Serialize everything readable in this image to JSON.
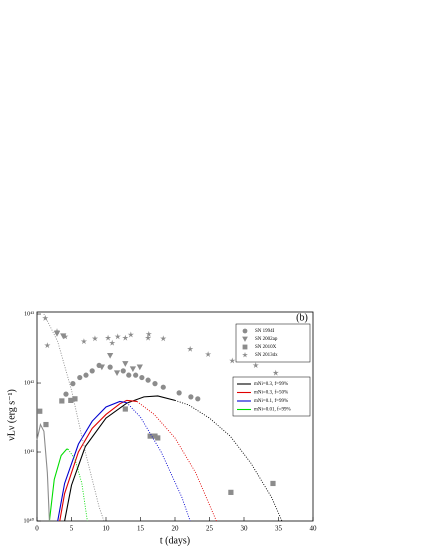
{
  "chart_data": {
    "type": "scatter",
    "panel_label": "(b)",
    "xlabel": "t (days)",
    "ylabel": "νLν (erg s⁻¹)",
    "xlim": [
      0,
      40
    ],
    "xticks": [
      0,
      5,
      10,
      15,
      20,
      25,
      30,
      35,
      40
    ],
    "ylim": [
      1e+40,
      1.07e+43
    ],
    "ylog": true,
    "yticks": [
      {
        "value": 1e+40,
        "label": "10⁴⁰"
      },
      {
        "value": 1e+41,
        "label": "10⁴¹"
      },
      {
        "value": 1e+42,
        "label": "10⁴²"
      },
      {
        "value": 1e+43,
        "label": "10⁴³"
      }
    ],
    "series": [
      {
        "name": "SN 1994I",
        "color": "#8c8c8c",
        "marker": "circle",
        "x": [
          4.2,
          5.2,
          6.2,
          7.1,
          8,
          9,
          10.6,
          12.5,
          13.3,
          14.3,
          15.2,
          16.1,
          17.1,
          18.3,
          20.6,
          22.3,
          23.3
        ],
        "values": [
          6.9e+41,
          9.8e+41,
          1.2e+42,
          1.3e+42,
          1.5e+42,
          1.8e+42,
          1.7e+42,
          1.5e+42,
          1.3e+42,
          1.3e+42,
          1.2e+42,
          1.1e+42,
          9.8e+41,
          8.7e+41,
          7.2e+41,
          6.3e+41,
          5.9e+41
        ]
      },
      {
        "name": "SN 2002ap",
        "color": "#8c8c8c",
        "marker": "triangle",
        "x": [
          2.9,
          3.8,
          9.4,
          10.6,
          11.6,
          12.8,
          13.9,
          14.9
        ],
        "values": [
          5.2e+42,
          4.8e+42,
          1.7e+42,
          2.5e+42,
          1.4e+42,
          1.9e+42,
          1.6e+42,
          1.7e+42
        ]
      },
      {
        "name": "SN 2010X",
        "color": "#8c8c8c",
        "marker": "square",
        "x": [
          0.4,
          1.3,
          3.6,
          4.9,
          5.5,
          12.8,
          16.4,
          17.1,
          17.5,
          28.1,
          34.2
        ],
        "values": [
          3.9e+41,
          2.5e+41,
          5.5e+41,
          5.6e+41,
          5.9e+41,
          4.2e+41,
          1.7e+41,
          1.7e+41,
          1.6e+41,
          2.6e+40,
          3.5e+40
        ]
      },
      {
        "name": "SN 2013dx",
        "color": "#8c8c8c",
        "marker": "star",
        "x": [
          1.2,
          1.5,
          2.9,
          4.1,
          6.8,
          8.4,
          10.3,
          10.9,
          11.7,
          12.8,
          13.6,
          16.1,
          16.2,
          18.3,
          22.2,
          24.8,
          28.3,
          31.7,
          34.6
        ],
        "values": [
          8.7e+42,
          3.5e+42,
          5.6e+42,
          4.7e+42,
          4e+42,
          4.4e+42,
          4.5e+42,
          3.8e+42,
          4.7e+42,
          4.5e+42,
          5e+42,
          4.5e+42,
          5.1e+42,
          4.4e+42,
          3.1e+42,
          2.6e+42,
          2.1e+42,
          1.8e+42,
          1.4e+42
        ]
      }
    ],
    "models": [
      {
        "name": "mNi=0.3, f=99%",
        "color": "#000000",
        "x": [
          4,
          5,
          7,
          10,
          13,
          15.5,
          17.5,
          20
        ],
        "values": [
          1e+40,
          3.3e+40,
          1.2e+41,
          3.1e+41,
          5.1e+41,
          6.3e+41,
          6.5e+41,
          5.6e+41
        ],
        "tail_x": [
          20,
          22,
          25,
          28,
          31,
          34,
          35.5
        ],
        "tail_values": [
          5.6e+41,
          4.8e+41,
          3.1e+41,
          1.7e+41,
          6.9e+40,
          2.2e+40,
          1e+40
        ]
      },
      {
        "name": "mNi=0.3, f=50%",
        "color": "#e00000",
        "x": [
          3.3,
          4,
          6,
          8,
          10,
          12,
          13,
          14.5
        ],
        "values": [
          1e+40,
          2.5e+40,
          1e+41,
          2.2e+41,
          3.5e+41,
          5e+41,
          5.6e+41,
          5.4e+41
        ],
        "tail_x": [
          14.5,
          17,
          20,
          23,
          26
        ],
        "tail_values": [
          5.4e+41,
          3.5e+41,
          1.6e+41,
          5e+40,
          1e+40
        ]
      },
      {
        "name": "mNi=0.1, f=99%",
        "color": "#0000d0",
        "x": [
          3,
          4,
          6,
          8,
          10,
          12,
          13
        ],
        "values": [
          1e+40,
          3.5e+40,
          1.3e+41,
          2.8e+41,
          4.5e+41,
          5.4e+41,
          5.2e+41
        ],
        "tail_x": [
          13,
          15,
          18,
          21,
          22.2
        ],
        "tail_values": [
          5.2e+41,
          3.2e+41,
          1e+41,
          2.2e+40,
          1e+40
        ]
      },
      {
        "name": "mNi=0.01, f=99%",
        "color": "#00dd00",
        "x": [
          1.8,
          2.5,
          3.5,
          4.3,
          4.5
        ],
        "values": [
          1e+40,
          4e+40,
          8.9e+40,
          1.1e+41,
          1.1e+41
        ],
        "tail_x": [
          4.5,
          5.5,
          6.5,
          7.3
        ],
        "tail_values": [
          1.1e+41,
          7.9e+40,
          3.5e+40,
          1e+40
        ]
      },
      {
        "color": "#8c8c8c",
        "x": [
          0,
          0.5,
          1,
          1.5,
          1.8
        ],
        "values": [
          1.5e+41,
          2.5e+41,
          2e+41,
          5e+40,
          1e+40
        ],
        "tail_x": [
          1,
          3,
          5,
          7,
          9,
          9.7
        ],
        "tail_values": [
          1e+43,
          4e+42,
          7.9e+41,
          1e+41,
          1.6e+40,
          1e+40
        ]
      }
    ]
  }
}
